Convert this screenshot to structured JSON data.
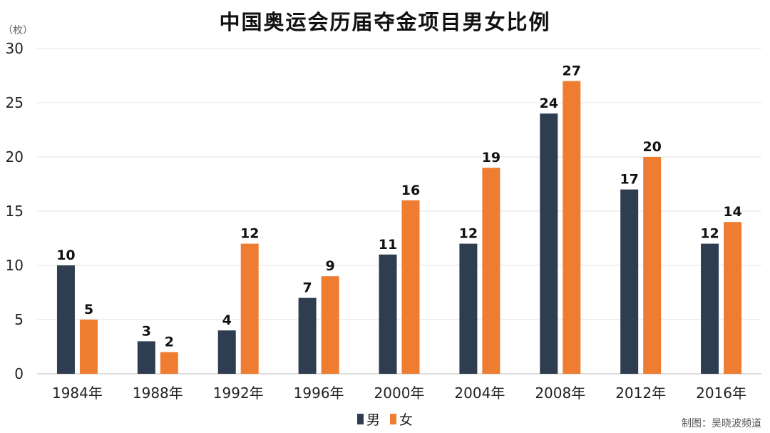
{
  "chart_data": {
    "type": "bar",
    "title": "中国奥运会历届夺金项目男女比例",
    "y_unit": "（枚）",
    "categories": [
      "1984年",
      "1988年",
      "1992年",
      "1996年",
      "2000年",
      "2004年",
      "2008年",
      "2012年",
      "2016年"
    ],
    "series": [
      {
        "name": "男",
        "color": "#2e3d4f",
        "values": [
          10,
          3,
          4,
          7,
          11,
          12,
          24,
          17,
          12
        ]
      },
      {
        "name": "女",
        "color": "#ef7d31",
        "values": [
          5,
          2,
          12,
          9,
          16,
          19,
          27,
          20,
          14
        ]
      }
    ],
    "ylim": [
      0,
      30
    ],
    "yticks": [
      0,
      5,
      10,
      15,
      20,
      25,
      30
    ],
    "grid": true,
    "legend_position": "bottom-center",
    "credit": "制图：吴晓波频道"
  }
}
